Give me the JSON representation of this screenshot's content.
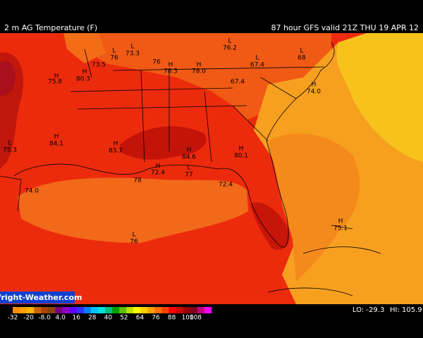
{
  "header": {
    "title": "2 m AG Temperature (F)",
    "run": "87 hour GFS valid 21Z THU 19 APR 12"
  },
  "map": {
    "labels": [
      "73.3",
      "76",
      "76",
      "73.5",
      "76.2",
      "68",
      "67.4",
      "78.3",
      "78.0",
      "80.3",
      "75.8",
      "67.4",
      "74.0",
      "84.1",
      "83.7",
      "75.3",
      "72.4",
      "84.6",
      "80.1",
      "77",
      "72.4",
      "74.0",
      "76",
      "75.1",
      "78"
    ],
    "markers": [
      "L",
      "H",
      "L",
      "H",
      "H",
      "L",
      "H",
      "L",
      "H",
      "H",
      "L",
      "H",
      "H",
      "H",
      "H",
      "L",
      "L",
      "L",
      "H"
    ]
  },
  "footer": {
    "watermark": "Wright-Weather.com",
    "scale": [
      "-32",
      "-20",
      "-8.0",
      "4.0",
      "16",
      "28",
      "40",
      "52",
      "64",
      "76",
      "88",
      "100",
      "108"
    ],
    "lo": "LO: -29.3",
    "hi": "HI: 105.9"
  }
}
